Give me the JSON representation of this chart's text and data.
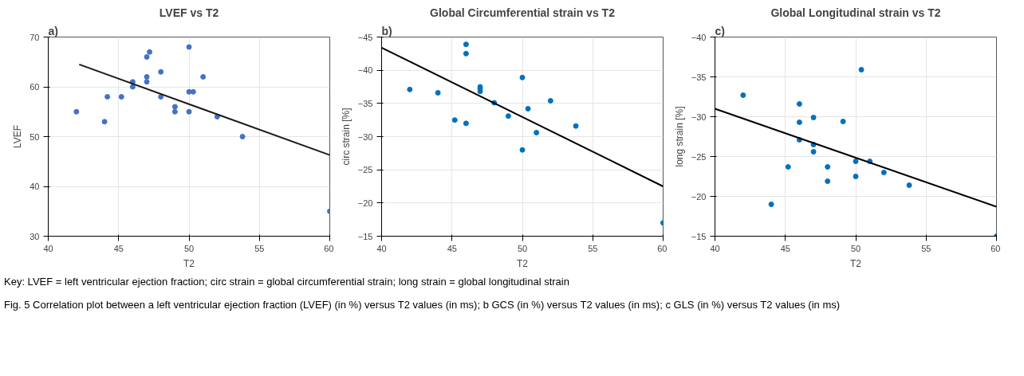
{
  "chart_data": [
    {
      "type": "scatter",
      "title": "LVEF vs T2",
      "xlabel": "T2",
      "ylabel": "LVEF",
      "xlim": [
        40,
        60
      ],
      "xticks": [
        40,
        45,
        50,
        55,
        60
      ],
      "ylim": [
        30,
        70
      ],
      "yticks": [
        30,
        40,
        50,
        60,
        70
      ],
      "grid": true,
      "marker": "circle",
      "annotations": [
        "a)",
        "Key: LVEF = left ventricular ejection fraction; circ strain = global circumferential strain; long strain = global longitudinal strain",
        "Fig. 5  Correlation plot between a left ventricular ejection fraction (LVEF) (in %) versus T2 values (in ms); b GCS (in %) versus T2 values (in ms); c GLS (in %) versus T2 values (in ms)"
      ],
      "series": [
        {
          "color": "#4472c4",
          "x": [
            42,
            44,
            44.2,
            45.2,
            46,
            46,
            47,
            47,
            47,
            47.2,
            48,
            48,
            49,
            49,
            50,
            50,
            50.3,
            50,
            51,
            52,
            53.8,
            60
          ],
          "values": [
            55,
            53,
            58,
            58,
            61,
            60,
            66,
            62,
            61,
            67,
            63,
            58,
            56,
            55,
            68,
            59,
            59,
            55,
            62,
            54,
            50,
            35
          ]
        },
        {
          "type": "line",
          "marker": "none",
          "color": "#1a1a1a",
          "x": [
            42.2,
            60
          ],
          "values": [
            64.5,
            46.3
          ]
        }
      ]
    },
    {
      "type": "scatter",
      "title": "Global Circumferential strain vs T2",
      "xlabel": "T2",
      "ylabel": "circ strain [%]",
      "xlim": [
        40,
        60
      ],
      "xticks": [
        40,
        45,
        50,
        55,
        60
      ],
      "ylim": [
        -15,
        -45
      ],
      "yticks": [
        -15,
        -20,
        -25,
        -30,
        -35,
        -40,
        -45
      ],
      "grid": true,
      "marker": "circle",
      "annotations": [
        "b)"
      ],
      "series": [
        {
          "color": "#0072bd",
          "x": [
            42,
            44,
            45.2,
            46,
            46,
            46,
            47,
            47,
            47,
            48,
            49,
            50,
            50.4,
            51,
            52,
            50,
            53.8,
            60
          ],
          "values": [
            -37.1,
            -36.6,
            -32.5,
            -43.9,
            -42.5,
            -32,
            -37.5,
            -37.2,
            -36.8,
            -35.1,
            -33.1,
            -38.9,
            -34.2,
            -30.6,
            -35.4,
            -28,
            -31.6,
            -17
          ]
        },
        {
          "type": "line",
          "marker": "none",
          "color": "#000000",
          "x": [
            40,
            60
          ],
          "values": [
            -43.4,
            -22.5
          ]
        }
      ]
    },
    {
      "type": "scatter",
      "title": "Global Longitudinal strain vs T2",
      "xlabel": "T2",
      "ylabel": "long strain [%]",
      "xlim": [
        40,
        60
      ],
      "xticks": [
        40,
        45,
        50,
        55,
        60
      ],
      "ylim": [
        -15,
        -40
      ],
      "yticks": [
        -15,
        -20,
        -25,
        -30,
        -35,
        -40
      ],
      "grid": true,
      "marker": "circle",
      "annotations": [
        "c)"
      ],
      "series": [
        {
          "color": "#0072bd",
          "x": [
            42,
            44,
            45.2,
            46,
            46,
            46,
            47,
            47,
            47,
            48,
            48,
            49.1,
            50,
            50,
            50.4,
            51,
            52,
            53.8,
            60
          ],
          "values": [
            -32.7,
            -19,
            -23.7,
            -31.6,
            -29.3,
            -27.1,
            -29.9,
            -26.5,
            -25.6,
            -23.7,
            -21.9,
            -29.4,
            -24.4,
            -22.5,
            -35.9,
            -24.4,
            -23,
            -21.4,
            -15
          ]
        },
        {
          "type": "line",
          "marker": "none",
          "color": "#000000",
          "x": [
            40,
            60
          ],
          "values": [
            -31,
            -18.7
          ]
        }
      ]
    }
  ]
}
